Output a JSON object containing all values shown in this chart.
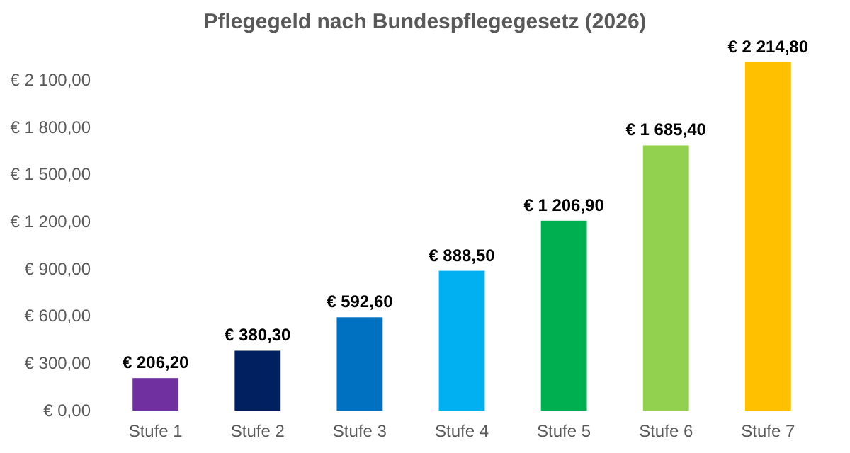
{
  "chart_data": {
    "type": "bar",
    "title": "Pflegegeld nach Bundespflegegesetz (2026)",
    "categories": [
      "Stufe 1",
      "Stufe 2",
      "Stufe 3",
      "Stufe 4",
      "Stufe 5",
      "Stufe 6",
      "Stufe 7"
    ],
    "values": [
      206.2,
      380.3,
      592.6,
      888.5,
      1206.9,
      1685.4,
      2214.8
    ],
    "colors": [
      "#7030a0",
      "#002060",
      "#0070c0",
      "#00b0f0",
      "#00b050",
      "#92d050",
      "#ffc000"
    ],
    "value_labels": [
      "€ 206,20",
      "€ 380,30",
      "€ 592,60",
      "€ 888,50",
      "€ 1 206,90",
      "€ 1 685,40",
      "€ 2 214,80"
    ],
    "ylim": [
      0,
      2250
    ],
    "yticks": [
      {
        "value": 0,
        "label": "€ 0,00"
      },
      {
        "value": 300,
        "label": "€ 300,00"
      },
      {
        "value": 600,
        "label": "€ 600,00"
      },
      {
        "value": 900,
        "label": "€ 900,00"
      },
      {
        "value": 1200,
        "label": "€ 1 200,00"
      },
      {
        "value": 1500,
        "label": "€ 1 500,00"
      },
      {
        "value": 1800,
        "label": "€ 1 800,00"
      },
      {
        "value": 2100,
        "label": "€ 2 100,00"
      }
    ],
    "grid": false
  }
}
